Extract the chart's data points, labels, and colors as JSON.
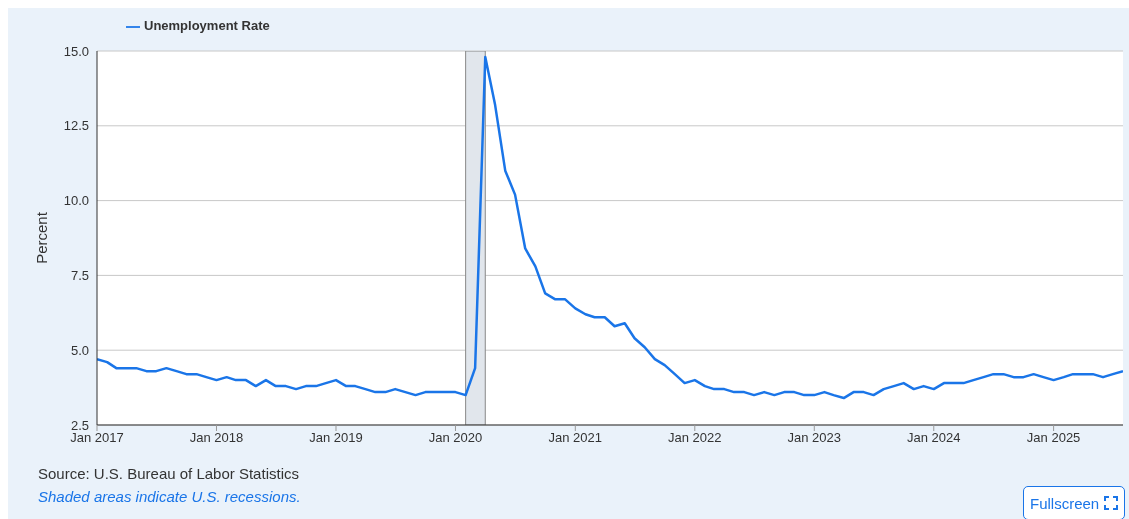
{
  "chart_data": {
    "type": "line",
    "ylabel": "Percent",
    "x": [
      "2017-01",
      "2017-02",
      "2017-03",
      "2017-04",
      "2017-05",
      "2017-06",
      "2017-07",
      "2017-08",
      "2017-09",
      "2017-10",
      "2017-11",
      "2017-12",
      "2018-01",
      "2018-02",
      "2018-03",
      "2018-04",
      "2018-05",
      "2018-06",
      "2018-07",
      "2018-08",
      "2018-09",
      "2018-10",
      "2018-11",
      "2018-12",
      "2019-01",
      "2019-02",
      "2019-03",
      "2019-04",
      "2019-05",
      "2019-06",
      "2019-07",
      "2019-08",
      "2019-09",
      "2019-10",
      "2019-11",
      "2019-12",
      "2020-01",
      "2020-02",
      "2020-03",
      "2020-04",
      "2020-05",
      "2020-06",
      "2020-07",
      "2020-08",
      "2020-09",
      "2020-10",
      "2020-11",
      "2020-12",
      "2021-01",
      "2021-02",
      "2021-03",
      "2021-04",
      "2021-05",
      "2021-06",
      "2021-07",
      "2021-08",
      "2021-09",
      "2021-10",
      "2021-11",
      "2021-12",
      "2022-01",
      "2022-02",
      "2022-03",
      "2022-04",
      "2022-05",
      "2022-06",
      "2022-07",
      "2022-08",
      "2022-09",
      "2022-10",
      "2022-11",
      "2022-12",
      "2023-01",
      "2023-02",
      "2023-03",
      "2023-04",
      "2023-05",
      "2023-06",
      "2023-07",
      "2023-08",
      "2023-09",
      "2023-10",
      "2023-11",
      "2023-12",
      "2024-01",
      "2024-02",
      "2024-03",
      "2024-04",
      "2024-05",
      "2024-06",
      "2024-07",
      "2024-08",
      "2024-09",
      "2024-10",
      "2024-11",
      "2024-12",
      "2025-01",
      "2025-02",
      "2025-03",
      "2025-04",
      "2025-05",
      "2025-06",
      "2025-07",
      "2025-08"
    ],
    "series": [
      {
        "name": "Unemployment Rate",
        "color": "#1a75e8",
        "values": [
          4.7,
          4.6,
          4.4,
          4.4,
          4.4,
          4.3,
          4.3,
          4.4,
          4.3,
          4.2,
          4.2,
          4.1,
          4.0,
          4.1,
          4.0,
          4.0,
          3.8,
          4.0,
          3.8,
          3.8,
          3.7,
          3.8,
          3.8,
          3.9,
          4.0,
          3.8,
          3.8,
          3.7,
          3.6,
          3.6,
          3.7,
          3.6,
          3.5,
          3.6,
          3.6,
          3.6,
          3.6,
          3.5,
          4.4,
          14.8,
          13.2,
          11.0,
          10.2,
          8.4,
          7.8,
          6.9,
          6.7,
          6.7,
          6.4,
          6.2,
          6.1,
          6.1,
          5.8,
          5.9,
          5.4,
          5.1,
          4.7,
          4.5,
          4.2,
          3.9,
          4.0,
          3.8,
          3.7,
          3.7,
          3.6,
          3.6,
          3.5,
          3.6,
          3.5,
          3.6,
          3.6,
          3.5,
          3.5,
          3.6,
          3.5,
          3.4,
          3.6,
          3.6,
          3.5,
          3.7,
          3.8,
          3.9,
          3.7,
          3.8,
          3.7,
          3.9,
          3.9,
          3.9,
          4.0,
          4.1,
          4.2,
          4.2,
          4.1,
          4.1,
          4.2,
          4.1,
          4.0,
          4.1,
          4.2,
          4.2,
          4.2,
          4.1,
          4.2,
          4.3
        ]
      }
    ],
    "xlim": [
      "2017-01",
      "2025-08"
    ],
    "xticks": [
      {
        "value": "2017-01",
        "label": "Jan 2017"
      },
      {
        "value": "2018-01",
        "label": "Jan 2018"
      },
      {
        "value": "2019-01",
        "label": "Jan 2019"
      },
      {
        "value": "2020-01",
        "label": "Jan 2020"
      },
      {
        "value": "2021-01",
        "label": "Jan 2021"
      },
      {
        "value": "2022-01",
        "label": "Jan 2022"
      },
      {
        "value": "2023-01",
        "label": "Jan 2023"
      },
      {
        "value": "2024-01",
        "label": "Jan 2024"
      },
      {
        "value": "2025-01",
        "label": "Jan 2025"
      }
    ],
    "ylim": [
      2.5,
      15
    ],
    "yticks": [
      {
        "value": 2.5,
        "label": "2.5"
      },
      {
        "value": 5,
        "label": "5.0"
      },
      {
        "value": 7.5,
        "label": "7.5"
      },
      {
        "value": 10,
        "label": "10.0"
      },
      {
        "value": 12.5,
        "label": "12.5"
      },
      {
        "value": 15,
        "label": "15.0"
      }
    ],
    "bands": [
      {
        "axis": "x",
        "from": "2020-02",
        "to": "2020-04",
        "color": "#e1e6ec"
      }
    ],
    "grid": "y",
    "legend": "top left",
    "marker": "none",
    "line_style": "solid",
    "annotations": [
      "Source: U.S. Bureau of Labor Statistics",
      "Shaded areas indicate U.S. recessions.",
      "Fullscreen"
    ]
  }
}
